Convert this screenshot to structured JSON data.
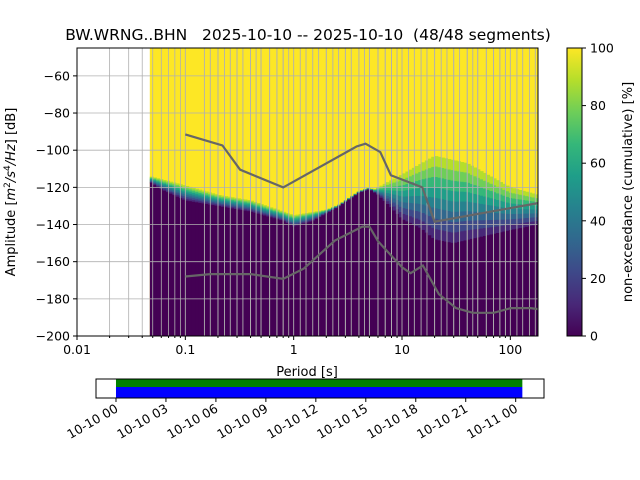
{
  "chart_data": [
    {
      "type": "heatmap",
      "title": "BW.WRNG..BHN   2025-10-10 -- 2025-10-10  (48/48 segments)",
      "xlabel": "Period [s]",
      "ylabel": "Amplitude [$m^2/s^4/Hz$] [dB]",
      "ylabel_parts": {
        "pre": "Amplitude [",
        "m": "m",
        "two": "2",
        "slash1": "/s",
        "four": "4",
        "slash2": "/Hz",
        "post": "] [dB]"
      },
      "x_scale": "log",
      "xlim": [
        0.01,
        180
      ],
      "ylim": [
        -200,
        -45
      ],
      "x_ticks": [
        {
          "value": 0.01,
          "label": "0.01"
        },
        {
          "value": 0.1,
          "label": "0.1"
        },
        {
          "value": 1,
          "label": "1"
        },
        {
          "value": 10,
          "label": "10"
        },
        {
          "value": 100,
          "label": "100"
        }
      ],
      "y_ticks": [
        {
          "value": -60,
          "label": "−60"
        },
        {
          "value": -80,
          "label": "−80"
        },
        {
          "value": -100,
          "label": "−100"
        },
        {
          "value": -120,
          "label": "−120"
        },
        {
          "value": -140,
          "label": "−140"
        },
        {
          "value": -160,
          "label": "−160"
        },
        {
          "value": -180,
          "label": "−180"
        },
        {
          "value": -200,
          "label": "−200"
        }
      ],
      "grid": true,
      "data_period_start": 0.047,
      "colormap": "viridis",
      "colors": {
        "high": "#fde725",
        "low": "#440154",
        "model_line": "#666666"
      },
      "colorbar": {
        "label": "non-exceedance (cumulative) [%]",
        "range": [
          0,
          100
        ],
        "ticks": [
          {
            "value": 0,
            "label": "0"
          },
          {
            "value": 20,
            "label": "20"
          },
          {
            "value": 40,
            "label": "40"
          },
          {
            "value": 60,
            "label": "60"
          },
          {
            "value": 80,
            "label": "80"
          },
          {
            "value": 100,
            "label": "100"
          }
        ]
      },
      "psd_lower_edge": [
        [
          0.047,
          -117
        ],
        [
          0.06,
          -121
        ],
        [
          0.1,
          -127
        ],
        [
          0.2,
          -130
        ],
        [
          0.4,
          -133
        ],
        [
          0.8,
          -138
        ],
        [
          1.0,
          -141
        ],
        [
          1.5,
          -138
        ],
        [
          2.5,
          -131
        ],
        [
          4.0,
          -123
        ],
        [
          5.0,
          -121
        ],
        [
          6.0,
          -124
        ],
        [
          8.0,
          -131
        ],
        [
          10.0,
          -137
        ],
        [
          15.0,
          -142
        ],
        [
          20.0,
          -148
        ],
        [
          30.0,
          -150
        ],
        [
          50.0,
          -147
        ],
        [
          100.0,
          -143
        ],
        [
          180.0,
          -140
        ]
      ],
      "psd_upper_edge": [
        [
          0.047,
          -114
        ],
        [
          0.1,
          -119
        ],
        [
          0.2,
          -124
        ],
        [
          0.4,
          -127
        ],
        [
          0.8,
          -133
        ],
        [
          1.0,
          -135
        ],
        [
          2.0,
          -132
        ],
        [
          4.0,
          -125
        ],
        [
          6.0,
          -120
        ],
        [
          10.0,
          -113
        ],
        [
          20.0,
          -103
        ],
        [
          40.0,
          -107
        ],
        [
          100.0,
          -120
        ],
        [
          180.0,
          -124
        ]
      ],
      "nhnm": [
        [
          0.1,
          -91.5
        ],
        [
          0.22,
          -97.4
        ],
        [
          0.32,
          -110.5
        ],
        [
          0.8,
          -120
        ],
        [
          3.8,
          -98
        ],
        [
          4.6,
          -96.5
        ],
        [
          6.3,
          -101
        ],
        [
          7.9,
          -113.5
        ],
        [
          15.4,
          -120
        ],
        [
          20,
          -138.5
        ],
        [
          180,
          -128.5
        ]
      ],
      "nlnm": [
        [
          0.1,
          -168
        ],
        [
          0.17,
          -166.7
        ],
        [
          0.4,
          -166.7
        ],
        [
          0.8,
          -169.2
        ],
        [
          1.24,
          -163.7
        ],
        [
          2.4,
          -148.6
        ],
        [
          4.3,
          -141.1
        ],
        [
          5.0,
          -141.1
        ],
        [
          6.0,
          -149
        ],
        [
          10,
          -163
        ],
        [
          12,
          -166.2
        ],
        [
          15.6,
          -162.1
        ],
        [
          21.9,
          -177.5
        ],
        [
          31.6,
          -185
        ],
        [
          45,
          -187.5
        ],
        [
          70,
          -187.5
        ],
        [
          101,
          -185
        ],
        [
          154,
          -185
        ],
        [
          180,
          -185.5
        ]
      ],
      "vertical_bin_lines": [
        0.15,
        0.17,
        0.2,
        0.23,
        0.26,
        0.3,
        0.34,
        0.4,
        0.45,
        0.5,
        0.6,
        0.7,
        0.8,
        1.15,
        1.3,
        1.5,
        1.7,
        2.0,
        2.3,
        2.6,
        3.0,
        3.4,
        4.0,
        4.5,
        5.0,
        6.0,
        7.0,
        8.0,
        9.0,
        11.5,
        13,
        15,
        17,
        20,
        23,
        26,
        30,
        34,
        40,
        45,
        50,
        60,
        70,
        80,
        90,
        115,
        130,
        150,
        170
      ]
    },
    {
      "type": "timeline",
      "x_ticks": [
        "10-10 00",
        "10-10 03",
        "10-10 06",
        "10-10 09",
        "10-10 12",
        "10-10 15",
        "10-10 18",
        "10-10 21",
        "10-11 00"
      ],
      "tick_hours": [
        0,
        3,
        6,
        9,
        12,
        15,
        18,
        21,
        24
      ],
      "xlim_hours": [
        -1.2,
        25.7
      ],
      "coverage_hours": [
        0,
        24.4
      ],
      "colors": {
        "top_band": "#008000",
        "bottom_band": "#0000ff"
      }
    }
  ]
}
